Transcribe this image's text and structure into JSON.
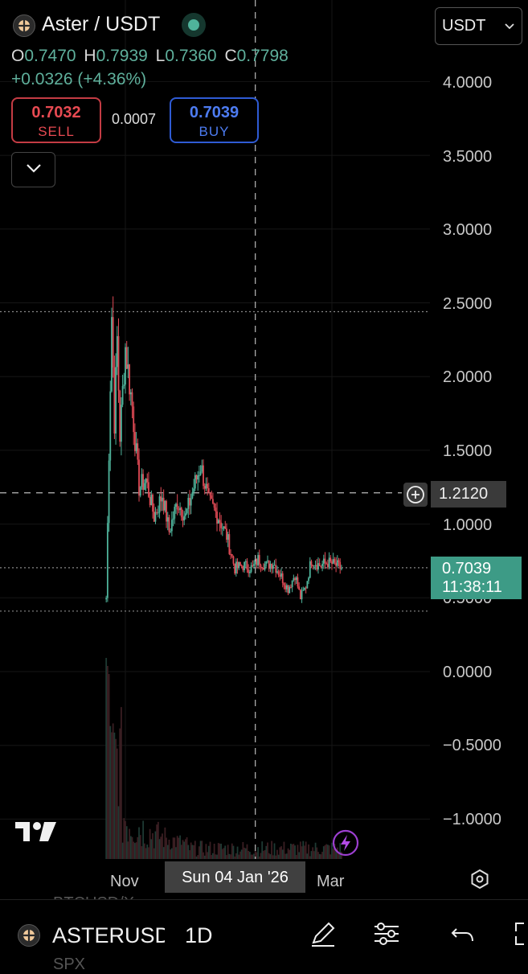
{
  "header": {
    "symbol": "Aster / USDT",
    "ohlc": {
      "o_label": "O",
      "o": "0.7470",
      "h_label": "H",
      "h": "0.7939",
      "l_label": "L",
      "l": "0.7360",
      "c_label": "C",
      "c": "0.7798"
    },
    "change": "+0.0326 (+4.36%)",
    "sell": {
      "price": "0.7032",
      "label": "SELL"
    },
    "spread": "0.0007",
    "buy": {
      "price": "0.7039",
      "label": "BUY"
    },
    "currency": "USDT"
  },
  "crosshair": {
    "price": "1.2120",
    "date": "Sun 04 Jan '26"
  },
  "last_price": {
    "price": "0.7039",
    "countdown": "11:38:11"
  },
  "underlying_text": {
    "top": "BTCUSD/X",
    "bottom": "SPX"
  },
  "bottom_bar": {
    "symbol": "ASTERUSD",
    "interval": "1D"
  },
  "icons": {
    "logo": "aster-logo-icon",
    "status": "market-open-dot-icon",
    "collapse": "chevron-down-icon",
    "currency_dropdown": "chevron-down-icon",
    "crosshair_add": "plus-circle-icon",
    "tradingview": "tradingview-logo-icon",
    "flash": "lightning-icon",
    "settings": "gear-icon",
    "draw": "pen-icon",
    "indicators": "sliders-icon",
    "undo": "undo-icon",
    "fullscreen": "fullscreen-icon"
  },
  "colors": {
    "up": "#4fb39b",
    "down": "#e04a55",
    "sell": "#e84a52",
    "buy": "#4d7cf2",
    "price_tag": "#3d9b86"
  },
  "chart_data": {
    "type": "candlestick",
    "interval": "1D",
    "y_axis": {
      "ticks": [
        "4.0000",
        "3.5000",
        "3.0000",
        "2.5000",
        "2.0000",
        "1.5000",
        "1.0000",
        "0.5000",
        "0.0000",
        "−0.5000",
        "−1.0000"
      ],
      "range": [
        -1.1,
        4.2
      ]
    },
    "x_axis": {
      "ticks": [
        "Nov",
        "Mar"
      ]
    },
    "series": [
      {
        "name": "ASTERUSDT",
        "anchors": [
          [
            "2025-09-17",
            0.5
          ],
          [
            "2025-09-19",
            1.5
          ],
          [
            "2025-09-21",
            2.42
          ],
          [
            "2025-09-23",
            1.7
          ],
          [
            "2025-09-25",
            2.25
          ],
          [
            "2025-09-27",
            1.6
          ],
          [
            "2025-10-01",
            2.2
          ],
          [
            "2025-10-06",
            1.8
          ],
          [
            "2025-10-11",
            1.25
          ],
          [
            "2025-10-16",
            1.3
          ],
          [
            "2025-10-22",
            1.05
          ],
          [
            "2025-10-28",
            1.2
          ],
          [
            "2025-11-02",
            0.95
          ],
          [
            "2025-11-08",
            1.15
          ],
          [
            "2025-11-14",
            1.05
          ],
          [
            "2025-11-20",
            1.25
          ],
          [
            "2025-11-25",
            1.4
          ],
          [
            "2025-12-01",
            1.15
          ],
          [
            "2025-12-08",
            1.05
          ],
          [
            "2025-12-14",
            0.92
          ],
          [
            "2025-12-20",
            0.7
          ],
          [
            "2025-12-26",
            0.72
          ],
          [
            "2026-01-02",
            0.7
          ],
          [
            "2026-01-06",
            0.76
          ],
          [
            "2026-01-12",
            0.72
          ],
          [
            "2026-01-17",
            0.74
          ],
          [
            "2026-01-22",
            0.66
          ],
          [
            "2026-01-28",
            0.56
          ],
          [
            "2026-02-02",
            0.66
          ],
          [
            "2026-02-06",
            0.5
          ],
          [
            "2026-02-10",
            0.58
          ],
          [
            "2026-02-14",
            0.76
          ],
          [
            "2026-02-20",
            0.72
          ],
          [
            "2026-02-26",
            0.74
          ],
          [
            "2026-03-04",
            0.72
          ],
          [
            "2026-03-08",
            0.7
          ]
        ]
      }
    ],
    "horizontal_lines": [
      {
        "value": 2.44,
        "style": "dotted"
      },
      {
        "value": 1.212,
        "style": "dashed"
      },
      {
        "value": 0.7039,
        "style": "dotted"
      },
      {
        "value": 0.41,
        "style": "dotted"
      }
    ],
    "crosshair_x": "2026-01-04",
    "volume_spike": "early-series"
  }
}
